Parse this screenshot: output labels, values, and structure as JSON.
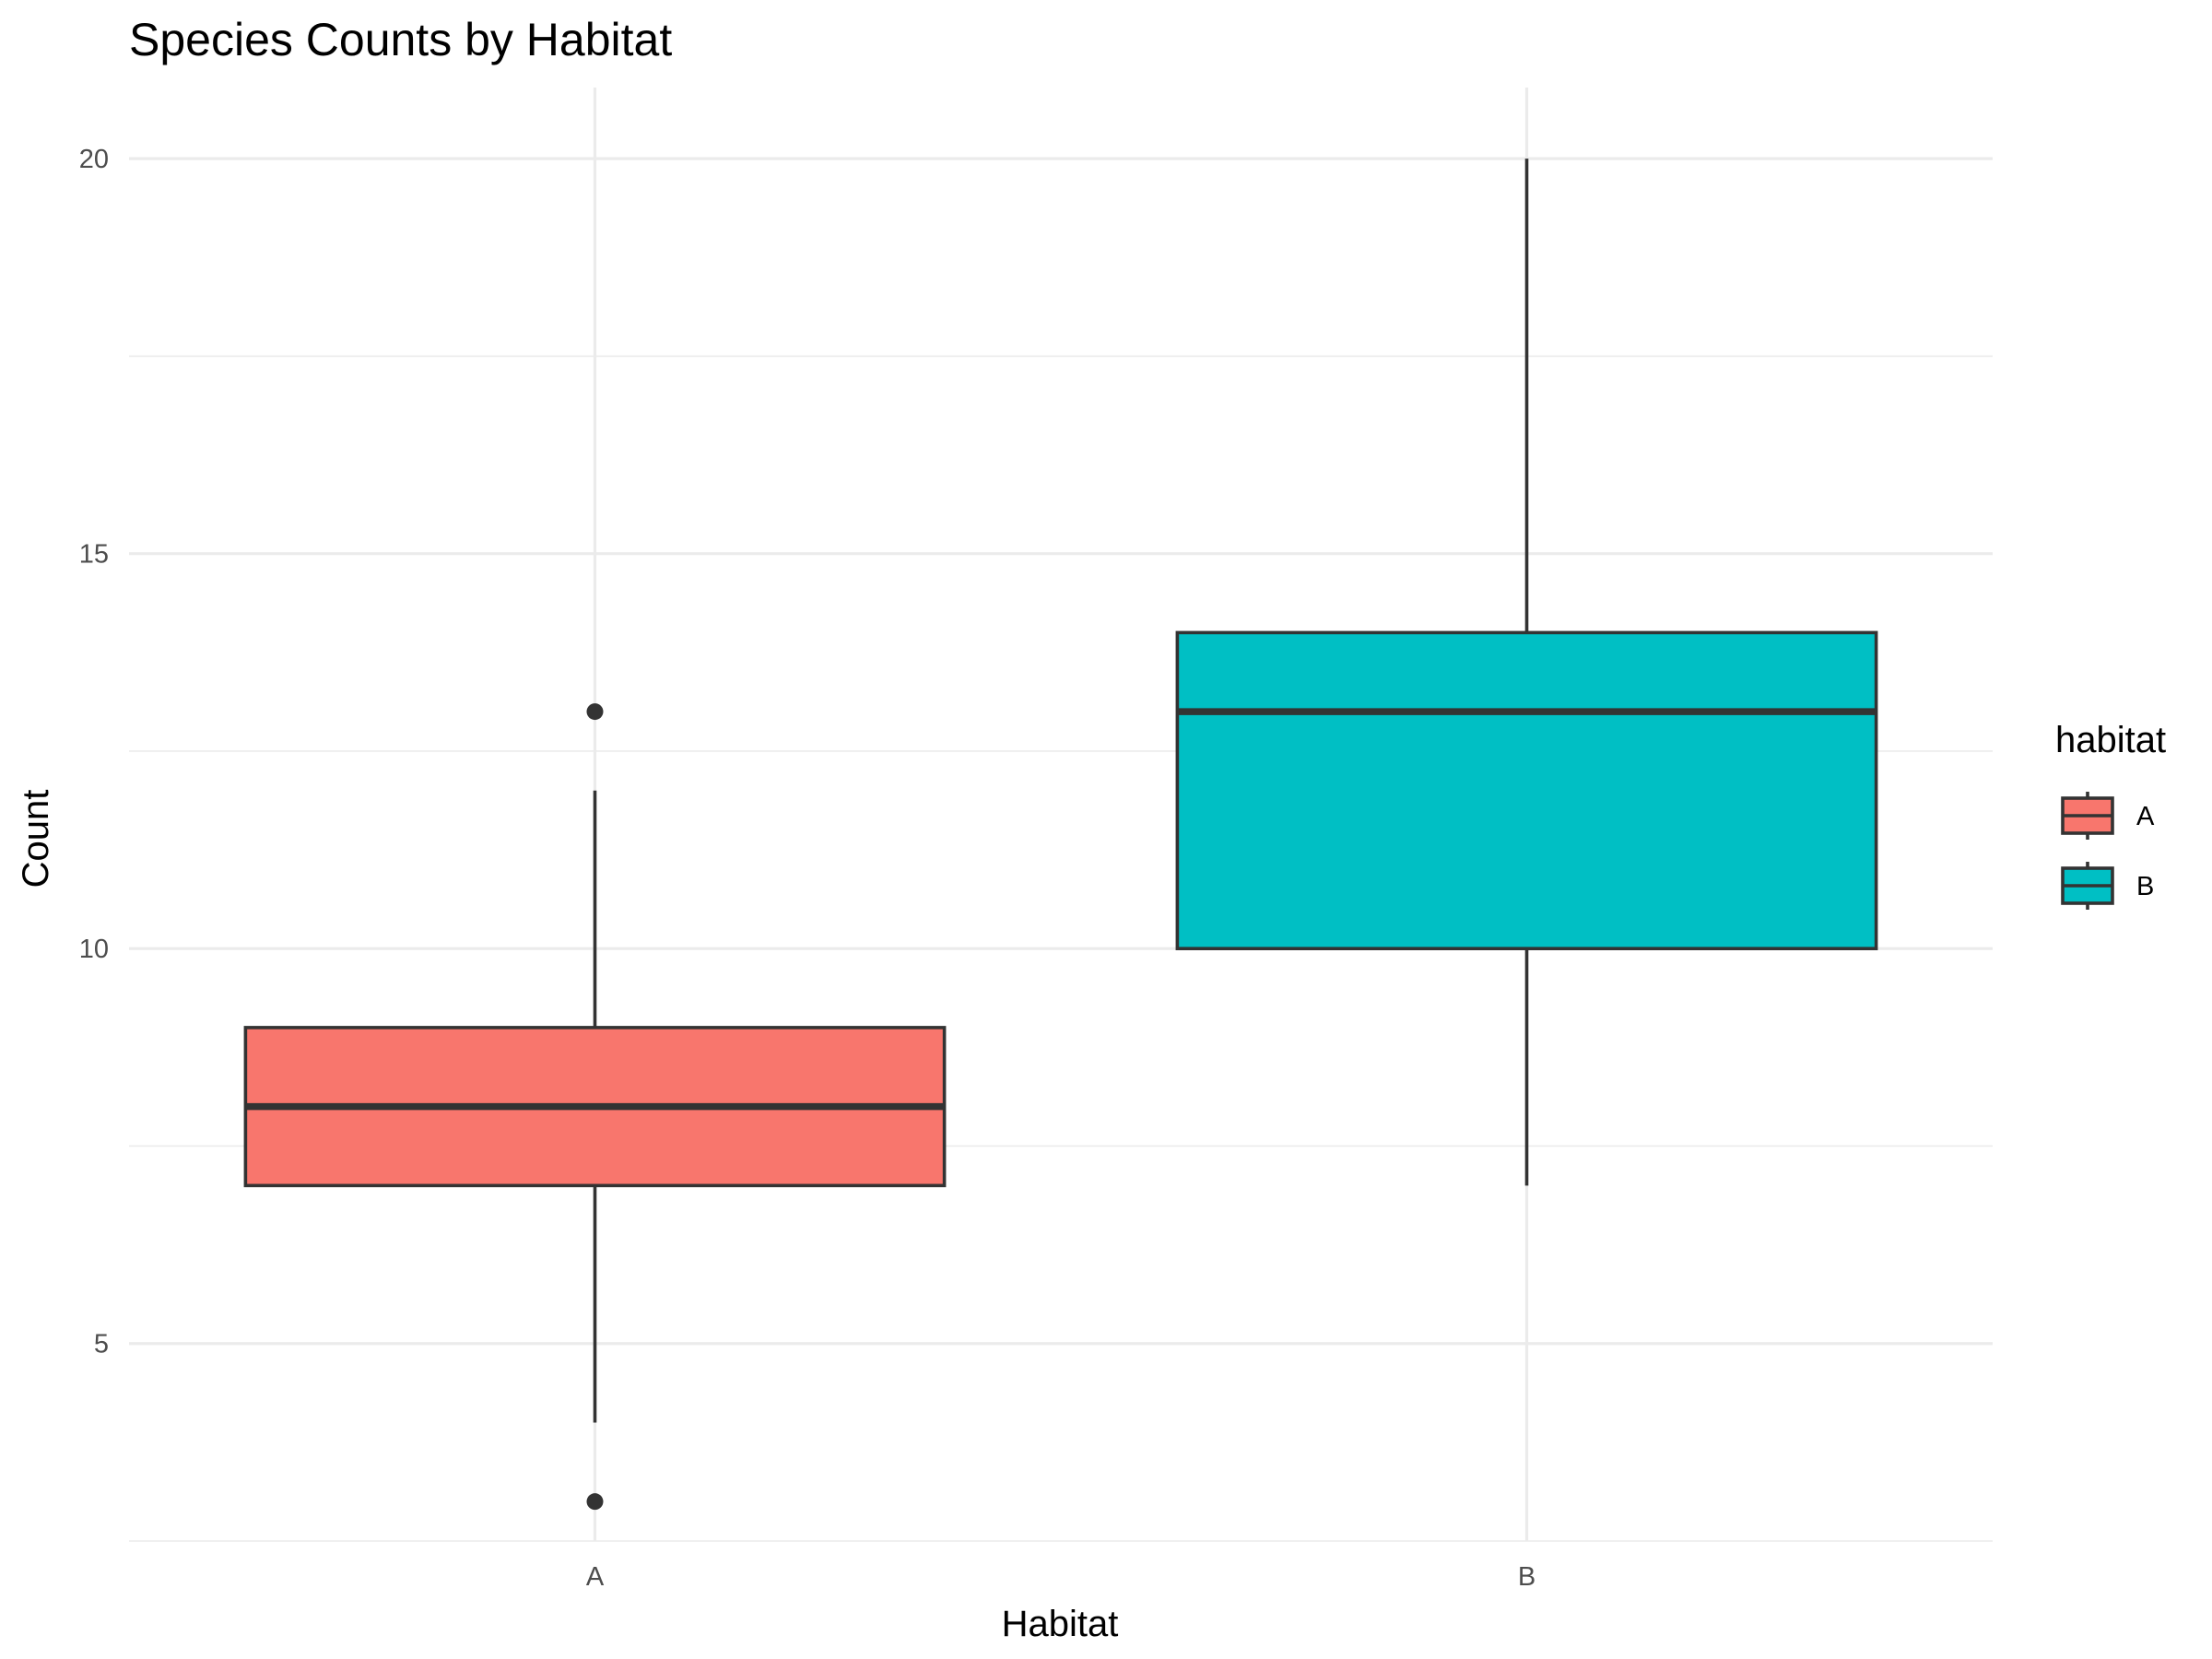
{
  "chart_data": {
    "type": "boxplot",
    "title": "Species Counts by Habitat",
    "xlabel": "Habitat",
    "ylabel": "Count",
    "categories": [
      "A",
      "B"
    ],
    "ylim": [
      2.5,
      20.9
    ],
    "yticks": [
      5,
      10,
      15,
      20
    ],
    "yminor": [
      2.5,
      7.5,
      12.5,
      17.5
    ],
    "grid": true,
    "legend": {
      "title": "habitat",
      "position": "right",
      "entries": [
        {
          "label": "A",
          "color": "#F8766D"
        },
        {
          "label": "B",
          "color": "#00BFC4"
        }
      ]
    },
    "series": [
      {
        "category": "A",
        "color": "#F8766D",
        "lower_whisker": 4,
        "q1": 7,
        "median": 8,
        "q3": 9,
        "upper_whisker": 12,
        "outliers": [
          3,
          13
        ]
      },
      {
        "category": "B",
        "color": "#00BFC4",
        "lower_whisker": 7,
        "q1": 10,
        "median": 13,
        "q3": 14,
        "upper_whisker": 20,
        "outliers": []
      }
    ]
  }
}
